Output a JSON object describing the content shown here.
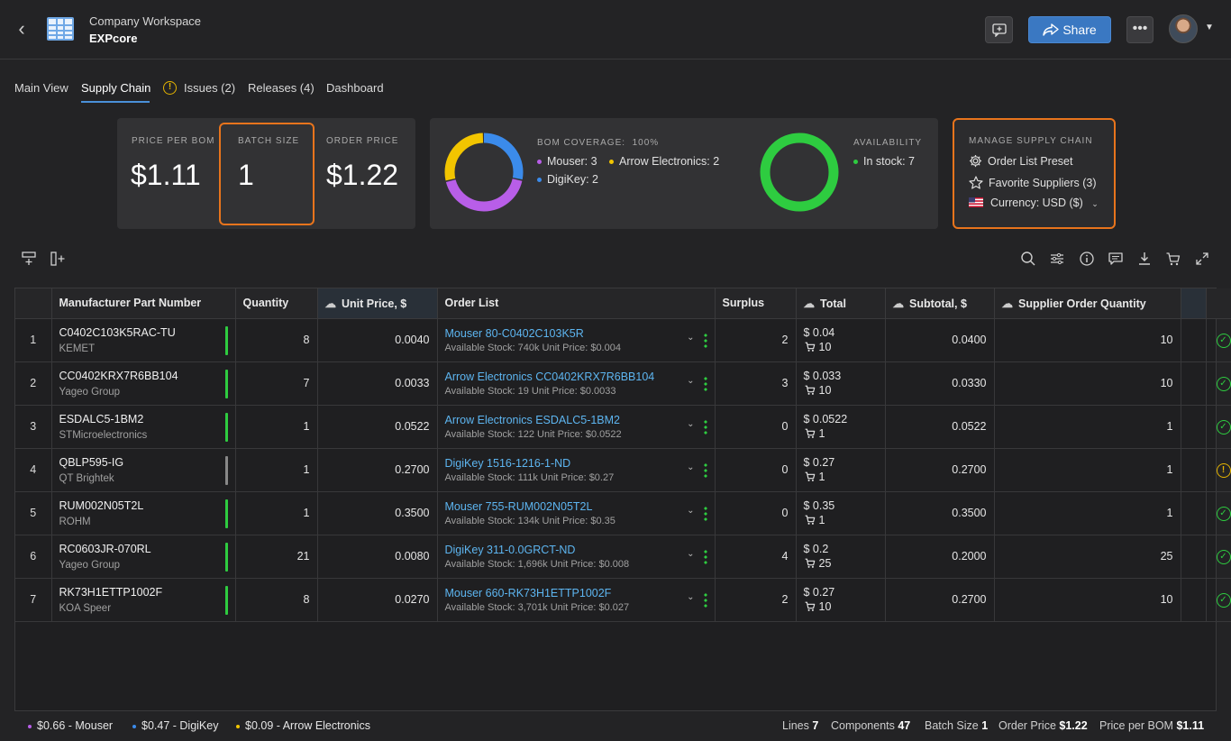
{
  "header": {
    "back_icon": "chevron-left-icon",
    "workspace": "Company Workspace",
    "project": "EXPcore",
    "share_label": "Share",
    "more_icon": "ellipsis-icon",
    "comment_icon": "add-comment-icon"
  },
  "tabs": [
    {
      "label": "Main View"
    },
    {
      "label": "Supply Chain",
      "active": true
    },
    {
      "label": "Issues (2)",
      "icon": "warning-icon"
    },
    {
      "label": "Releases (4)"
    },
    {
      "label": "Dashboard"
    }
  ],
  "summary": {
    "price_per_bom_label": "PRICE PER BOM",
    "price_per_bom": "$1.11",
    "batch_size_label": "BATCH SIZE",
    "batch_size": "1",
    "order_price_label": "ORDER PRICE",
    "order_price": "$1.22"
  },
  "coverage": {
    "label": "BOM COVERAGE:",
    "percent": "100%",
    "legend": [
      {
        "text": "Mouser: 3",
        "color": "#b85ee8",
        "value": 3
      },
      {
        "text": "Arrow Electronics: 2",
        "color": "#f2c500",
        "value": 2
      },
      {
        "text": "DigiKey: 2",
        "color": "#3b8beb",
        "value": 2
      }
    ]
  },
  "availability": {
    "label": "AVAILABILITY",
    "legend": [
      {
        "text": "In stock: 7",
        "color": "#2ecc40"
      }
    ]
  },
  "manage": {
    "label": "MANAGE SUPPLY CHAIN",
    "items": [
      {
        "text": "Order List Preset",
        "icon": "gear-icon"
      },
      {
        "text": "Favorite Suppliers (3)",
        "icon": "star-icon"
      },
      {
        "text": "Currency: USD ($)",
        "icon": "us-flag-icon"
      }
    ]
  },
  "toolbar": {
    "left_icons": [
      "insert-row-icon",
      "insert-column-icon"
    ],
    "right_icons": [
      "search-icon",
      "filter-sliders-icon",
      "info-icon",
      "comment-icon",
      "download-icon",
      "cart-icon",
      "expand-icon"
    ]
  },
  "table": {
    "columns": [
      "",
      "Manufacturer Part Number",
      "Quantity",
      "Unit Price, $",
      "Order List",
      "Surplus",
      "Total",
      "Subtotal, $",
      "Supplier Order Quantity",
      "",
      ""
    ],
    "rows": [
      {
        "n": "1",
        "mpn": "C0402C103K5RAC-TU",
        "mfr": "KEMET",
        "qty": "8",
        "unit": "0.0040",
        "link": "Mouser 80-C0402C103K5R",
        "stock": "Available Stock: 740k  Unit Price: $0.004",
        "surplus": "2",
        "total": "$ 0.04",
        "cart": "10",
        "subtotal": "0.0400",
        "soq": "10",
        "status": "ok",
        "bar": "green"
      },
      {
        "n": "2",
        "mpn": "CC0402KRX7R6BB104",
        "mfr": "Yageo Group",
        "qty": "7",
        "unit": "0.0033",
        "link": "Arrow Electronics CC0402KRX7R6BB104",
        "stock": "Available Stock: 19  Unit Price: $0.0033",
        "surplus": "3",
        "total": "$ 0.033",
        "cart": "10",
        "subtotal": "0.0330",
        "soq": "10",
        "status": "ok",
        "bar": "green"
      },
      {
        "n": "3",
        "mpn": "ESDALC5-1BM2",
        "mfr": "STMicroelectronics",
        "qty": "1",
        "unit": "0.0522",
        "link": "Arrow Electronics ESDALC5-1BM2",
        "stock": "Available Stock: 122  Unit Price: $0.0522",
        "surplus": "0",
        "total": "$ 0.0522",
        "cart": "1",
        "subtotal": "0.0522",
        "soq": "1",
        "status": "ok",
        "bar": "green"
      },
      {
        "n": "4",
        "mpn": "QBLP595-IG",
        "mfr": "QT Brightek",
        "qty": "1",
        "unit": "0.2700",
        "link": "DigiKey 1516-1216-1-ND",
        "stock": "Available Stock: 111k  Unit Price: $0.27",
        "surplus": "0",
        "total": "$ 0.27",
        "cart": "1",
        "subtotal": "0.2700",
        "soq": "1",
        "status": "warn",
        "bar": "gray"
      },
      {
        "n": "5",
        "mpn": "RUM002N05T2L",
        "mfr": "ROHM",
        "qty": "1",
        "unit": "0.3500",
        "link": "Mouser 755-RUM002N05T2L",
        "stock": "Available Stock: 134k  Unit Price: $0.35",
        "surplus": "0",
        "total": "$ 0.35",
        "cart": "1",
        "subtotal": "0.3500",
        "soq": "1",
        "status": "ok",
        "bar": "green"
      },
      {
        "n": "6",
        "mpn": "RC0603JR-070RL",
        "mfr": "Yageo Group",
        "qty": "21",
        "unit": "0.0080",
        "link": "DigiKey 311-0.0GRCT-ND",
        "stock": "Available Stock: 1,696k  Unit Price: $0.008",
        "surplus": "4",
        "total": "$ 0.2",
        "cart": "25",
        "subtotal": "0.2000",
        "soq": "25",
        "status": "ok",
        "bar": "green"
      },
      {
        "n": "7",
        "mpn": "RK73H1ETTP1002F",
        "mfr": "KOA Speer",
        "qty": "8",
        "unit": "0.0270",
        "link": "Mouser 660-RK73H1ETTP1002F",
        "stock": "Available Stock: 3,701k  Unit Price: $0.027",
        "surplus": "2",
        "total": "$ 0.27",
        "cart": "10",
        "subtotal": "0.2700",
        "soq": "10",
        "status": "ok",
        "bar": "green"
      }
    ]
  },
  "footer": {
    "suppliers": [
      {
        "text": "$0.66 - Mouser",
        "color": "#b85ee8"
      },
      {
        "text": "$0.47 - DigiKey",
        "color": "#3b8beb"
      },
      {
        "text": "$0.09 - Arrow Electronics",
        "color": "#f2c500"
      }
    ],
    "lines_label": "Lines",
    "lines": "7",
    "components_label": "Components",
    "components": "47",
    "batch_label": "Batch Size",
    "batch": "1",
    "order_label": "Order Price",
    "order": "$1.22",
    "ppb_label": "Price per BOM",
    "ppb": "$1.11"
  }
}
